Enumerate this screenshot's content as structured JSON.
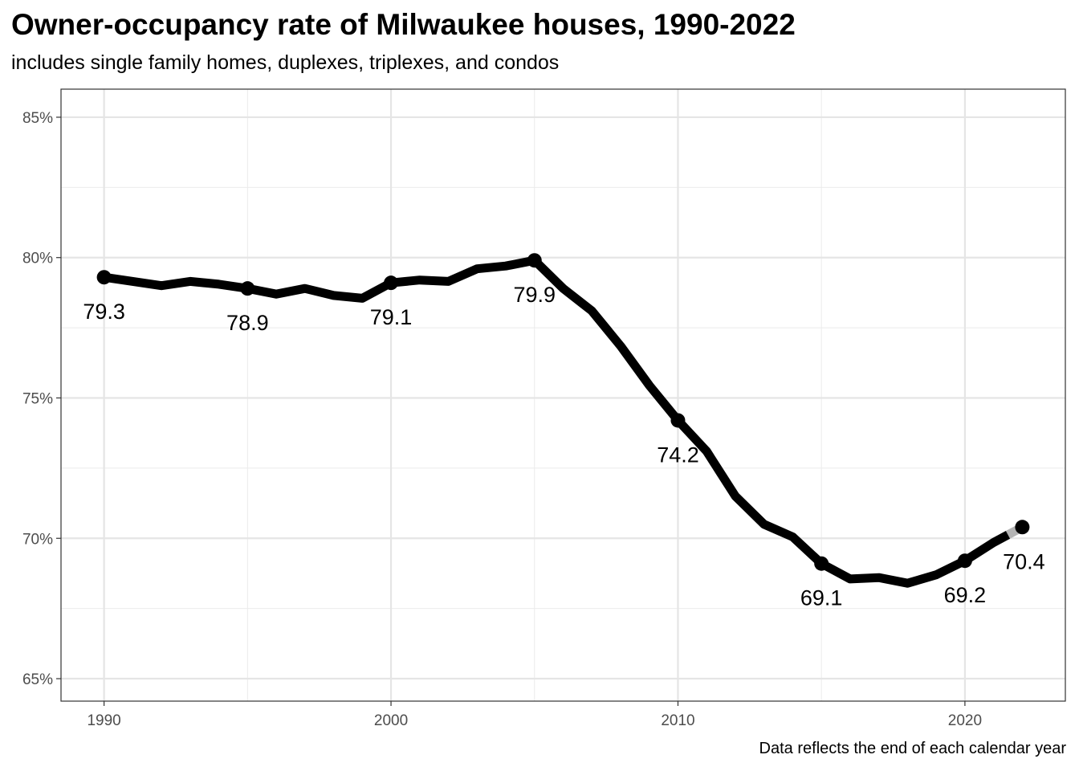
{
  "chart_data": {
    "type": "line",
    "title": "Owner-occupancy rate of Milwaukee houses, 1990-2022",
    "subtitle": "includes single family homes, duplexes, triplexes, and condos",
    "caption": "Data reflects the end of each calendar year",
    "xlabel": "",
    "ylabel": "",
    "xlim": [
      1988.5,
      2023.5
    ],
    "ylim": [
      64.2,
      86.0
    ],
    "x_ticks": [
      1990,
      2000,
      2010,
      2020
    ],
    "y_ticks": [
      65,
      70,
      75,
      80,
      85
    ],
    "y_tick_labels": [
      "65%",
      "70%",
      "75%",
      "80%",
      "85%"
    ],
    "grid": true,
    "line_color": "#000000",
    "final_segment_color": "#b3b3b3",
    "series": [
      {
        "x": [
          1990,
          1991,
          1992,
          1993,
          1994,
          1995,
          1996,
          1997,
          1998,
          1999,
          2000,
          2001,
          2002,
          2003,
          2004,
          2005,
          2006,
          2007,
          2008,
          2009,
          2010,
          2011,
          2012,
          2013,
          2014,
          2015,
          2016,
          2017,
          2018,
          2019,
          2020,
          2021,
          2022
        ],
        "values": [
          79.3,
          79.15,
          79.0,
          79.15,
          79.05,
          78.9,
          78.7,
          78.9,
          78.65,
          78.55,
          79.1,
          79.2,
          79.15,
          79.6,
          79.7,
          79.9,
          78.9,
          78.1,
          76.85,
          75.45,
          74.2,
          73.1,
          71.5,
          70.5,
          70.05,
          69.1,
          68.55,
          68.6,
          68.4,
          68.7,
          69.2,
          69.85,
          70.4
        ]
      }
    ],
    "labeled_points": [
      {
        "x": 1990,
        "y": 79.3,
        "label": "79.3"
      },
      {
        "x": 1995,
        "y": 78.9,
        "label": "78.9"
      },
      {
        "x": 2000,
        "y": 79.1,
        "label": "79.1"
      },
      {
        "x": 2005,
        "y": 79.9,
        "label": "79.9"
      },
      {
        "x": 2010,
        "y": 74.2,
        "label": "74.2"
      },
      {
        "x": 2015,
        "y": 69.1,
        "label": "69.1"
      },
      {
        "x": 2020,
        "y": 69.2,
        "label": "69.2"
      },
      {
        "x": 2022,
        "y": 70.4,
        "label": "70.4"
      }
    ]
  }
}
